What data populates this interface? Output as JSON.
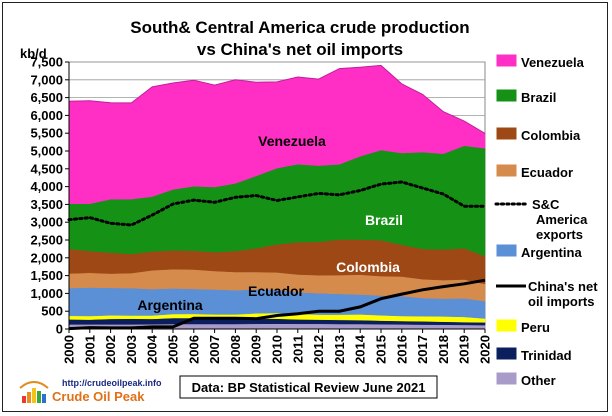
{
  "chart_data": {
    "type": "area",
    "title_line1": "South& Central America crude production",
    "title_line2": "vs China's net oil imports",
    "ylabel": "kb/d",
    "ylim": [
      0,
      7500
    ],
    "yticks": [
      0,
      500,
      1000,
      1500,
      2000,
      2500,
      3000,
      3500,
      4000,
      4500,
      5000,
      5500,
      6000,
      6500,
      7000,
      7500
    ],
    "ytick_labels": [
      "0",
      "500",
      "1,000",
      "1,500",
      "2,000",
      "2,500",
      "3,000",
      "3,500",
      "4,000",
      "4,500",
      "5,000",
      "5,500",
      "6,000",
      "6,500",
      "7,000",
      "7,500"
    ],
    "categories": [
      "2000",
      "2001",
      "2002",
      "2003",
      "2004",
      "2005",
      "2006",
      "2007",
      "2008",
      "2009",
      "2010",
      "2011",
      "2012",
      "2013",
      "2014",
      "2015",
      "2016",
      "2017",
      "2018",
      "2019",
      "2020"
    ],
    "stacked_series": [
      {
        "name": "Other",
        "color": "#a99bc9",
        "values": [
          130,
          130,
          130,
          130,
          135,
          140,
          140,
          140,
          140,
          145,
          150,
          145,
          145,
          140,
          140,
          135,
          130,
          125,
          120,
          115,
          110
        ]
      },
      {
        "name": "Trinidad",
        "color": "#0b1f5e",
        "values": [
          140,
          135,
          155,
          160,
          150,
          170,
          170,
          155,
          150,
          150,
          140,
          125,
          120,
          115,
          110,
          100,
          95,
          90,
          85,
          80,
          75
        ]
      },
      {
        "name": "Peru",
        "color": "#ffff00",
        "values": [
          100,
          100,
          100,
          90,
          95,
          110,
          115,
          115,
          120,
          145,
          160,
          150,
          140,
          150,
          160,
          150,
          140,
          145,
          150,
          145,
          110
        ]
      },
      {
        "name": "Argentina",
        "color": "#5b8fd6",
        "values": [
          780,
          800,
          770,
          770,
          740,
          720,
          700,
          700,
          680,
          670,
          650,
          610,
          600,
          580,
          560,
          555,
          560,
          510,
          500,
          520,
          490
        ]
      },
      {
        "name": "Ecuador",
        "color": "#d58b4b",
        "values": [
          410,
          415,
          400,
          420,
          530,
          540,
          545,
          520,
          510,
          490,
          490,
          500,
          505,
          530,
          555,
          545,
          550,
          530,
          520,
          530,
          480
        ]
      },
      {
        "name": "Colombia",
        "color": "#9e4816",
        "values": [
          690,
          610,
          590,
          540,
          530,
          530,
          530,
          530,
          590,
          670,
          790,
          910,
          940,
          1000,
          990,
          1010,
          890,
          850,
          860,
          880,
          780
        ]
      },
      {
        "name": "Brazil",
        "color": "#159115",
        "values": [
          1270,
          1330,
          1500,
          1540,
          1540,
          1710,
          1810,
          1830,
          1900,
          2030,
          2140,
          2190,
          2140,
          2110,
          2340,
          2530,
          2580,
          2720,
          2690,
          2880,
          3030
        ]
      },
      {
        "name": "Venezuela",
        "color": "#ff2fc5",
        "values": [
          2880,
          2890,
          2710,
          2700,
          3080,
          2990,
          2980,
          2860,
          2910,
          2630,
          2420,
          2450,
          2430,
          2690,
          2500,
          2380,
          1940,
          1620,
          1180,
          690,
          420
        ]
      }
    ],
    "line_series": [
      {
        "name": "S&C America exports",
        "style": "dotted",
        "color": "#000000",
        "values": [
          3070,
          3130,
          2970,
          2920,
          3200,
          3510,
          3620,
          3560,
          3700,
          3750,
          3610,
          3710,
          3810,
          3770,
          3890,
          4070,
          4130,
          3960,
          3790,
          3450,
          3450
        ]
      },
      {
        "name": "China's net oil imports",
        "style": "solid",
        "color": "#000000",
        "values": [
          10,
          40,
          30,
          30,
          60,
          60,
          300,
          300,
          300,
          290,
          380,
          430,
          500,
          500,
          620,
          850,
          980,
          1100,
          1190,
          1270,
          1370
        ]
      }
    ],
    "area_labels": {
      "venezuela": "Venezuela",
      "brazil": "Brazil",
      "colombia": "Colombia",
      "ecuador": "Ecuador",
      "argentina": "Argentina"
    },
    "legend": [
      {
        "key": "venezuela",
        "text": [
          "Venezuela"
        ],
        "kind": "box",
        "color": "#ff2fc5"
      },
      {
        "key": "brazil",
        "text": [
          "Brazil"
        ],
        "kind": "box",
        "color": "#159115"
      },
      {
        "key": "colombia",
        "text": [
          "Colombia"
        ],
        "kind": "box",
        "color": "#9e4816"
      },
      {
        "key": "ecuador",
        "text": [
          "Ecuador"
        ],
        "kind": "box",
        "color": "#d58b4b"
      },
      {
        "key": "exports",
        "text": [
          "S&C",
          "America",
          "exports"
        ],
        "kind": "dotted",
        "color": "#000000"
      },
      {
        "key": "argentina",
        "text": [
          "Argentina"
        ],
        "kind": "box",
        "color": "#5b8fd6"
      },
      {
        "key": "china",
        "text": [
          "China's net",
          "oil imports"
        ],
        "kind": "solid",
        "color": "#000000"
      },
      {
        "key": "peru",
        "text": [
          "Peru"
        ],
        "kind": "box",
        "color": "#ffff00"
      },
      {
        "key": "trinidad",
        "text": [
          "Trinidad"
        ],
        "kind": "box",
        "color": "#0b1f5e"
      },
      {
        "key": "other",
        "text": [
          "Other"
        ],
        "kind": "box",
        "color": "#a99bc9"
      }
    ],
    "source_note": "Data: BP Statistical Review June 2021",
    "logo": {
      "url_text": "http://crudeoilpeak.info",
      "name": "Crude Oil Peak"
    },
    "grid": true,
    "legend_position": "right"
  }
}
